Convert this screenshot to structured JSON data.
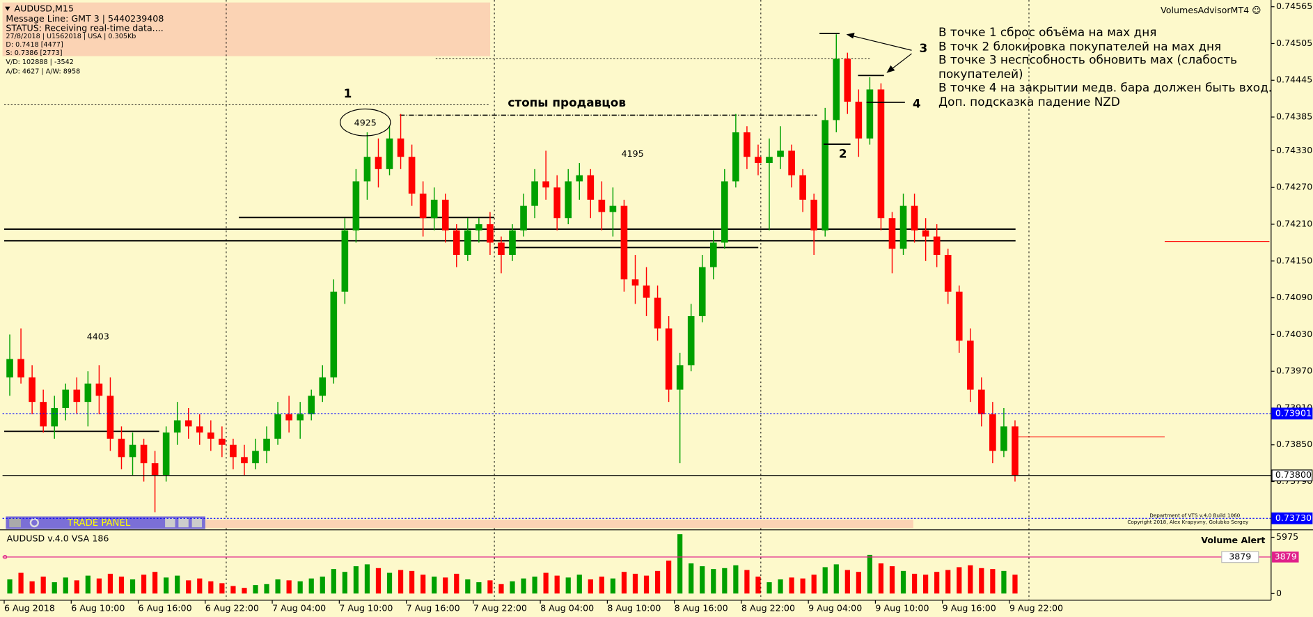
{
  "chart_data": [
    {
      "type": "candlestick",
      "title": "AUDUSD,M15",
      "info_lines": [
        "Message Line: GMT 3 | 5440239408",
        "STATUS: Receiving real-time data....",
        "27/8/2018 | U1562018 | USA | 0.305Kb",
        "D: 0.7418  [4477]",
        "S: 0.7386  [2773]",
        "V/D: 102888 | -3542",
        "A/D: 4627 | A/W: 8958"
      ],
      "advisor": "VolumesAdvisorMT4 ☺",
      "annotations": [
        "1",
        "2",
        "3",
        "4",
        "4925",
        "4195",
        "4403",
        "стопы продавцов"
      ],
      "notes": [
        "В точке 1 сброс объёма на мах дня",
        "В точк 2 блокировка покупателей на мах дня",
        "В точке 3 неспсобность обновить мах (слабость",
        "покупателей)",
        "В точке 4 на закрытии медв.  бара должен быть вход.",
        "Доп. подсказка падение NZD"
      ],
      "trade_panel": "TRADE PANEL",
      "credits": [
        "Department of VTS v.4.0 Build 1060",
        "Copyright 2018, Alex Krapyvny, Golubko Sergey"
      ],
      "categories": [
        "6 Aug 2018",
        null,
        null,
        null,
        null,
        null,
        "6 Aug 10:00",
        null,
        null,
        null,
        null,
        null,
        "6 Aug 16:00",
        null,
        null,
        null,
        null,
        null,
        "6 Aug 22:00",
        null,
        null,
        null,
        null,
        null,
        "7 Aug 04:00",
        null,
        null,
        null,
        null,
        null,
        "7 Aug 10:00",
        null,
        null,
        null,
        null,
        null,
        "7 Aug 16:00",
        null,
        null,
        null,
        null,
        null,
        "7 Aug 22:00",
        null,
        null,
        null,
        null,
        null,
        "8 Aug 04:00",
        null,
        null,
        null,
        null,
        null,
        "8 Aug 10:00",
        null,
        null,
        null,
        null,
        null,
        "8 Aug 16:00",
        null,
        null,
        null,
        null,
        null,
        "8 Aug 22:00",
        null,
        null,
        null,
        null,
        null,
        "9 Aug 04:00",
        null,
        null,
        null,
        null,
        null,
        "9 Aug 10:00",
        null,
        null,
        null,
        null,
        null,
        "9 Aug 16:00",
        null,
        null,
        null,
        null,
        null,
        "9 Aug 22:00"
      ],
      "open": [
        0.7396,
        0.7399,
        0.7396,
        0.7392,
        0.7388,
        0.7391,
        0.7394,
        0.7392,
        0.7395,
        0.7393,
        0.7386,
        0.7383,
        0.7385,
        0.7382,
        0.738,
        0.7387,
        0.7389,
        0.7388,
        0.7387,
        0.7386,
        0.7385,
        0.7383,
        0.7382,
        0.7384,
        0.7386,
        0.739,
        0.7389,
        0.739,
        0.7393,
        0.7396,
        0.741,
        0.742,
        0.7428,
        0.7432,
        0.743,
        0.7435,
        0.7432,
        0.7426,
        0.7422,
        0.7425,
        0.742,
        0.7416,
        0.742,
        0.7421,
        0.7418,
        0.7416,
        0.742,
        0.7424,
        0.7428,
        0.7427,
        0.7422,
        0.7428,
        0.7429,
        0.7425,
        0.7423,
        0.7424,
        0.7412,
        0.7411,
        0.7409,
        0.7404,
        0.7394,
        0.7398,
        0.7406,
        0.7414,
        0.7418,
        0.7428,
        0.7436,
        0.7432,
        0.7431,
        0.7432,
        0.7433,
        0.7429,
        0.7425,
        0.742,
        0.7438,
        0.7448,
        0.7441,
        0.7435,
        0.7443,
        0.7422,
        0.7417,
        0.7424,
        0.742,
        0.7419,
        0.7416,
        0.741,
        0.7402,
        0.7394,
        0.739,
        0.7384,
        0.7388
      ],
      "high": [
        0.7403,
        0.7404,
        0.7398,
        0.7394,
        0.7393,
        0.7395,
        0.7396,
        0.7397,
        0.7398,
        0.7396,
        0.7388,
        0.7387,
        0.7386,
        0.7384,
        0.7388,
        0.7392,
        0.7391,
        0.739,
        0.7389,
        0.7388,
        0.7386,
        0.7385,
        0.7386,
        0.7388,
        0.7392,
        0.7393,
        0.7392,
        0.7394,
        0.7398,
        0.7412,
        0.7422,
        0.743,
        0.7436,
        0.7435,
        0.7437,
        0.7439,
        0.7434,
        0.7428,
        0.7427,
        0.7426,
        0.7421,
        0.7422,
        0.7422,
        0.7423,
        0.7419,
        0.7421,
        0.7426,
        0.743,
        0.7433,
        0.7429,
        0.743,
        0.7431,
        0.743,
        0.7428,
        0.7427,
        0.7425,
        0.7416,
        0.7414,
        0.7411,
        0.7406,
        0.74,
        0.7408,
        0.7416,
        0.742,
        0.743,
        0.7439,
        0.7437,
        0.7434,
        0.7435,
        0.7437,
        0.7434,
        0.743,
        0.7426,
        0.744,
        0.7452,
        0.7449,
        0.7443,
        0.7445,
        0.7444,
        0.7423,
        0.7426,
        0.7426,
        0.7422,
        0.7421,
        0.7417,
        0.7411,
        0.7404,
        0.7396,
        0.7392,
        0.7391,
        0.7389
      ],
      "low": [
        0.7393,
        0.7395,
        0.739,
        0.7387,
        0.7386,
        0.7389,
        0.739,
        0.7388,
        0.739,
        0.7384,
        0.7381,
        0.738,
        0.7379,
        0.7374,
        0.7379,
        0.7385,
        0.7386,
        0.7385,
        0.7384,
        0.7383,
        0.7381,
        0.738,
        0.7381,
        0.7382,
        0.7385,
        0.7387,
        0.7386,
        0.7389,
        0.7392,
        0.7395,
        0.7408,
        0.7418,
        0.7425,
        0.7427,
        0.7429,
        0.743,
        0.7424,
        0.7419,
        0.742,
        0.7418,
        0.7414,
        0.7415,
        0.7418,
        0.7416,
        0.7413,
        0.7415,
        0.7419,
        0.7422,
        0.7425,
        0.742,
        0.7421,
        0.7425,
        0.7422,
        0.742,
        0.7419,
        0.741,
        0.7408,
        0.7406,
        0.7402,
        0.7392,
        0.7382,
        0.7397,
        0.7405,
        0.7412,
        0.7417,
        0.7427,
        0.743,
        0.7429,
        0.742,
        0.743,
        0.7427,
        0.7423,
        0.7416,
        0.7419,
        0.7436,
        0.7439,
        0.7432,
        0.7434,
        0.742,
        0.7413,
        0.7416,
        0.7418,
        0.7415,
        0.7414,
        0.7408,
        0.74,
        0.7392,
        0.7388,
        0.7382,
        0.7383,
        0.7379
      ],
      "close": [
        0.7399,
        0.7396,
        0.7392,
        0.7388,
        0.7391,
        0.7394,
        0.7392,
        0.7395,
        0.7393,
        0.7386,
        0.7383,
        0.7385,
        0.7382,
        0.738,
        0.7387,
        0.7389,
        0.7388,
        0.7387,
        0.7386,
        0.7385,
        0.7383,
        0.7382,
        0.7384,
        0.7386,
        0.739,
        0.7389,
        0.739,
        0.7393,
        0.7396,
        0.741,
        0.742,
        0.7428,
        0.7432,
        0.743,
        0.7435,
        0.7432,
        0.7426,
        0.7422,
        0.7425,
        0.742,
        0.7416,
        0.742,
        0.7421,
        0.7418,
        0.7416,
        0.742,
        0.7424,
        0.7428,
        0.7427,
        0.7422,
        0.7428,
        0.7429,
        0.7425,
        0.7423,
        0.7424,
        0.7412,
        0.7411,
        0.7409,
        0.7404,
        0.7394,
        0.7398,
        0.7406,
        0.7414,
        0.7418,
        0.7428,
        0.7436,
        0.7432,
        0.7431,
        0.7432,
        0.7433,
        0.7429,
        0.7425,
        0.742,
        0.7438,
        0.7448,
        0.7441,
        0.7435,
        0.7443,
        0.7422,
        0.7417,
        0.7424,
        0.742,
        0.7419,
        0.7416,
        0.741,
        0.7402,
        0.7394,
        0.739,
        0.7384,
        0.7388,
        0.738
      ],
      "up_color": "#00a000",
      "down_color": "#ff0000",
      "ylim": [
        0.73714,
        0.74576
      ],
      "yticks": [
        0.74565,
        0.74505,
        0.74445,
        0.74385,
        {
          "value": 0.7433,
          "label": "0.74330"
        },
        {
          "value": 0.7427,
          "label": "0.74270"
        },
        {
          "value": 0.7421,
          "label": "0.74210"
        },
        {
          "value": 0.7415,
          "label": "0.74150"
        },
        {
          "value": 0.7409,
          "label": "0.74090"
        },
        {
          "value": 0.7403,
          "label": "0.74030"
        },
        {
          "value": 0.7397,
          "label": "0.73970"
        },
        {
          "value": 0.7391,
          "label": "0.73910"
        },
        {
          "value": 0.7385,
          "label": "0.73850"
        },
        {
          "value": 0.7379,
          "label": "0.73790"
        }
      ],
      "grid": false,
      "levels": [
        0.74202,
        0.74183,
        0.73872,
        0.74221,
        0.74172,
        0.74388,
        0.74405,
        0.7448,
        0.74182,
        0.73863
      ],
      "price_lines": [
        {
          "value": 0.73901,
          "label": "0.73901",
          "color": "#0000ff",
          "line_style": "dotted"
        },
        {
          "value": 0.738,
          "label": "0.73800",
          "color": "#000000",
          "line_style": "solid"
        },
        {
          "value": 0.7373,
          "label": "0.73730",
          "color": "#0000ff",
          "line_style": "dotted"
        }
      ]
    },
    {
      "type": "bar",
      "title": "AUDUSD v.4.0 VSA 186",
      "alert_title": "Volume Alert",
      "alert": 3879,
      "alert_color": "#e0208a",
      "values": [
        1500,
        2200,
        1300,
        1800,
        1200,
        1700,
        1400,
        1900,
        1600,
        2100,
        1800,
        1500,
        2000,
        2300,
        1700,
        1900,
        1400,
        1600,
        1300,
        1100,
        800,
        600,
        900,
        1000,
        1500,
        1400,
        1300,
        1600,
        1800,
        2600,
        2300,
        2900,
        3100,
        2700,
        2200,
        2500,
        2400,
        2000,
        1800,
        1700,
        2100,
        1500,
        1200,
        1400,
        1000,
        1300,
        1600,
        1800,
        2200,
        1900,
        1700,
        2000,
        1500,
        1800,
        1600,
        2300,
        2100,
        1900,
        2400,
        3500,
        6300,
        3200,
        2900,
        2600,
        2700,
        3000,
        2500,
        1800,
        1200,
        1500,
        1700,
        1600,
        2000,
        2800,
        3100,
        2500,
        2300,
        4100,
        3200,
        2900,
        2400,
        2100,
        2000,
        2300,
        2500,
        2800,
        3000,
        2700,
        2600,
        2400,
        2000
      ],
      "up_color": "#00a000",
      "down_color": "#ff0000",
      "ylim": [
        0,
        6500
      ],
      "yticks": [
        0,
        5975
      ]
    }
  ]
}
